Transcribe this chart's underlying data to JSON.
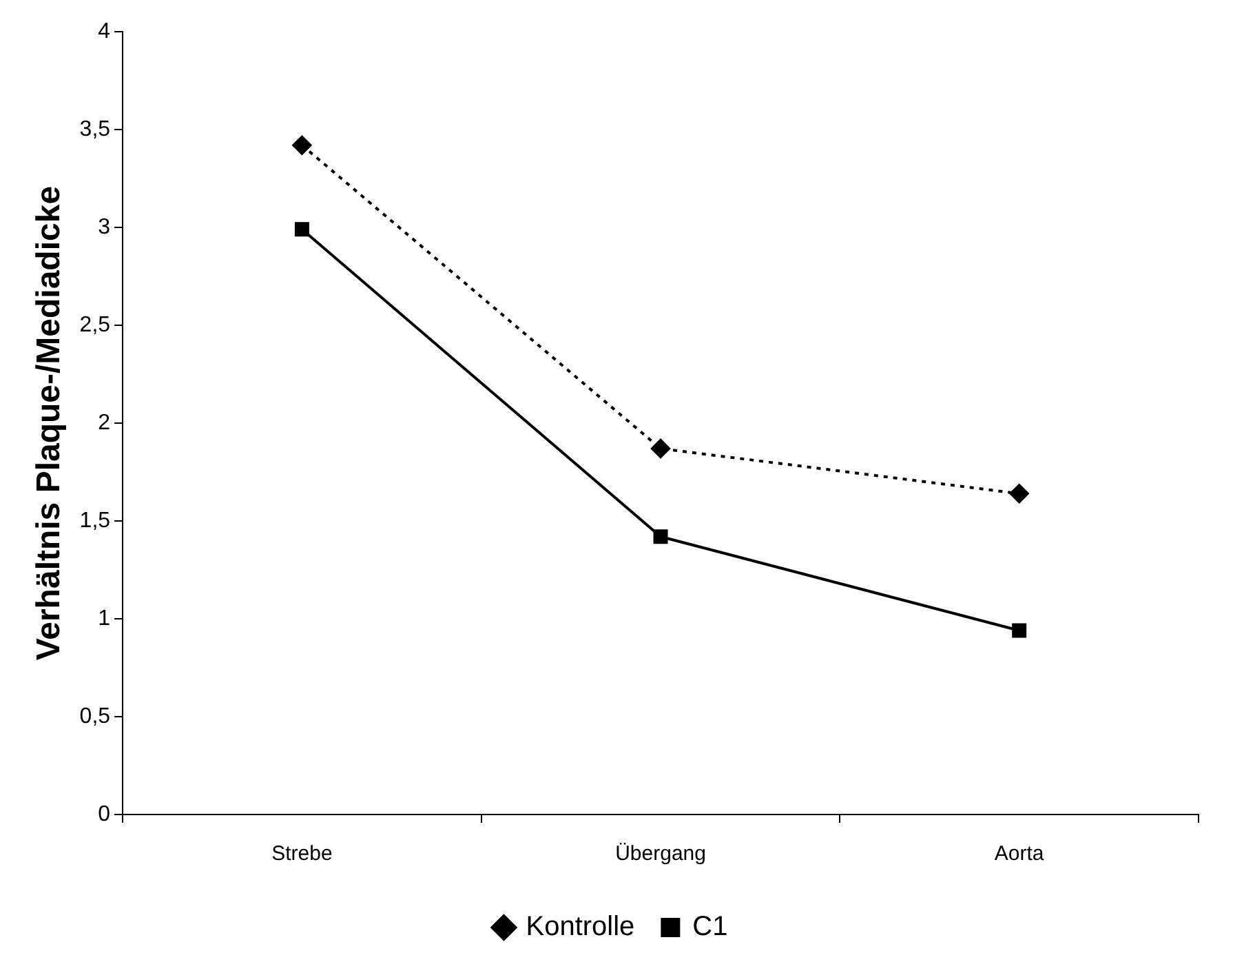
{
  "chart_data": {
    "type": "line",
    "ylabel": "Verhältnis Plaque-/Mediadicke",
    "categories": [
      "Strebe",
      "Übergang",
      "Aorta"
    ],
    "series": [
      {
        "name": "Kontrolle",
        "color": "#000000",
        "values": [
          3.42,
          1.87,
          1.64
        ],
        "marker": "diamond",
        "line_style": "dotted"
      },
      {
        "name": "C1",
        "color": "#000000",
        "values": [
          2.99,
          1.42,
          0.94
        ],
        "marker": "square",
        "line_style": "solid"
      }
    ],
    "ylim": [
      0,
      4
    ],
    "yticks": [
      0,
      {
        "value": 0.5,
        "label": "0,5"
      },
      1,
      {
        "value": 1.5,
        "label": "1,5"
      },
      2,
      {
        "value": 2.5,
        "label": "2,5"
      },
      3,
      {
        "value": 3.5,
        "label": "3,5"
      },
      4
    ],
    "grid": false,
    "legend": "bottom"
  }
}
